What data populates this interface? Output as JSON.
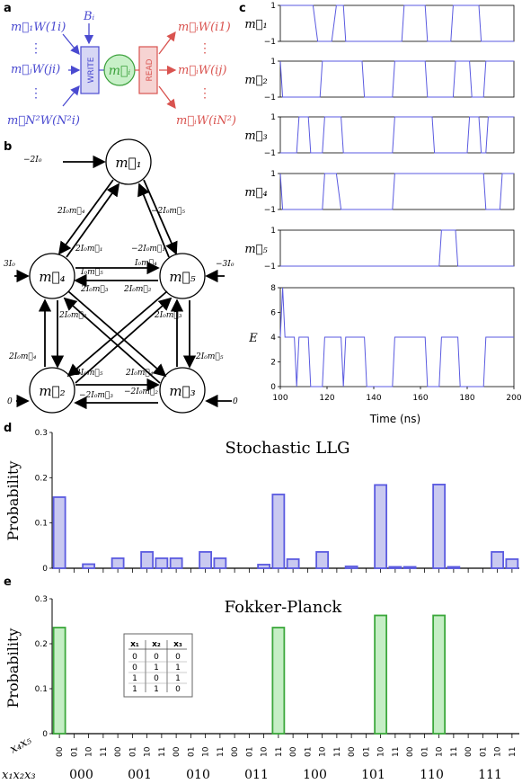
{
  "panels": {
    "a": "a",
    "b": "b",
    "c": "c",
    "d": "d",
    "e": "e"
  },
  "panel_a": {
    "inputs": [
      "m⃗₁W(1i)",
      "m⃗ⱼW(ji)",
      "m⃗N²W(N²i)"
    ],
    "bias": "Bᵢ",
    "write": "WRITE",
    "read": "READ",
    "node": "m⃗ᵢ",
    "outputs": [
      "m⃗ᵢW(i1)",
      "m⃗ᵢW(ij)",
      "m⃗ᵢW(iN²)"
    ],
    "colors": {
      "blue": "#4a4ad0",
      "red": "#d9534f",
      "node_fill": "#c8f0c8",
      "node_stroke": "#3aa03a"
    }
  },
  "panel_b": {
    "nodes": [
      "m⃗₁",
      "m⃗₂",
      "m⃗₃",
      "m⃗₄",
      "m⃗₅"
    ],
    "biases": {
      "m1": "−2I₀",
      "m4": "3I₀",
      "m5": "−3I₀",
      "m2": "0",
      "m3": "0"
    },
    "edge_labels": [
      "2I₀m⃗₄",
      "−2I₀m⃗₅",
      "2I₀m⃗₁",
      "−2I₀m⃗₁",
      "I₀m⃗₅",
      "I₀m⃗₄",
      "2I₀m⃗₃",
      "2I₀m⃗₂",
      "2I₀m⃗₂",
      "2I₀m⃗₃",
      "2I₀m⃗₄",
      "2I₀m⃗₅",
      "2I₀m⃗₅",
      "2I₀m⃗₄",
      "−2I₀m⃗₃",
      "−2I₀m⃗₂"
    ]
  },
  "chart_data": [
    {
      "type": "line",
      "panel": "c",
      "xlabel": "Time (ns)",
      "xlim": [
        100,
        200
      ],
      "xticks": [
        100,
        120,
        140,
        160,
        180,
        200
      ],
      "series": [
        {
          "name": "m⃗₁",
          "ylim": [
            -1,
            1
          ],
          "yticks": [
            -1,
            0,
            1
          ],
          "segments": [
            [
              100,
              1
            ],
            [
              114,
              1
            ],
            [
              116,
              -1
            ],
            [
              122,
              -1
            ],
            [
              124,
              1
            ],
            [
              127,
              1
            ],
            [
              128,
              -1
            ],
            [
              152,
              -1
            ],
            [
              153,
              1
            ],
            [
              162,
              1
            ],
            [
              163,
              -1
            ],
            [
              173,
              -1
            ],
            [
              174,
              1
            ],
            [
              185,
              1
            ],
            [
              186,
              -1
            ],
            [
              200,
              -1
            ]
          ]
        },
        {
          "name": "m⃗₂",
          "ylim": [
            -1,
            1
          ],
          "yticks": [
            -1,
            0,
            1
          ],
          "segments": [
            [
              100,
              1
            ],
            [
              101,
              -1
            ],
            [
              117,
              -1
            ],
            [
              118,
              1
            ],
            [
              135,
              1
            ],
            [
              136,
              -1
            ],
            [
              148,
              -1
            ],
            [
              149,
              1
            ],
            [
              162,
              1
            ],
            [
              163,
              -1
            ],
            [
              174,
              -1
            ],
            [
              175,
              1
            ],
            [
              181,
              1
            ],
            [
              182,
              -1
            ],
            [
              187,
              -1
            ],
            [
              188,
              1
            ],
            [
              200,
              1
            ]
          ]
        },
        {
          "name": "m⃗₃",
          "ylim": [
            -1,
            1
          ],
          "yticks": [
            -1,
            0,
            1
          ],
          "segments": [
            [
              100,
              -1
            ],
            [
              107,
              -1
            ],
            [
              108,
              1
            ],
            [
              112,
              1
            ],
            [
              113,
              -1
            ],
            [
              118,
              -1
            ],
            [
              119,
              1
            ],
            [
              126,
              1
            ],
            [
              127,
              -1
            ],
            [
              148,
              -1
            ],
            [
              149,
              1
            ],
            [
              165,
              1
            ],
            [
              166,
              -1
            ],
            [
              180,
              -1
            ],
            [
              181,
              1
            ],
            [
              185,
              1
            ],
            [
              186,
              -1
            ],
            [
              188,
              -1
            ],
            [
              189,
              1
            ],
            [
              200,
              1
            ]
          ]
        },
        {
          "name": "m⃗₄",
          "ylim": [
            -1,
            1
          ],
          "yticks": [
            -1,
            0,
            1
          ],
          "segments": [
            [
              100,
              1
            ],
            [
              101,
              -1
            ],
            [
              118,
              -1
            ],
            [
              119,
              1
            ],
            [
              124,
              1
            ],
            [
              126,
              -1
            ],
            [
              148,
              -1
            ],
            [
              149,
              1
            ],
            [
              187,
              1
            ],
            [
              188,
              -1
            ],
            [
              194,
              -1
            ],
            [
              195,
              1
            ],
            [
              200,
              1
            ]
          ]
        },
        {
          "name": "m⃗₅",
          "ylim": [
            -1,
            1
          ],
          "yticks": [
            -1,
            0,
            1
          ],
          "segments": [
            [
              100,
              -1
            ],
            [
              168,
              -1
            ],
            [
              169,
              1
            ],
            [
              175,
              1
            ],
            [
              176,
              -1
            ],
            [
              200,
              -1
            ]
          ]
        },
        {
          "name": "E",
          "ylim": [
            0,
            8
          ],
          "yticks": [
            0,
            2,
            4,
            6,
            8
          ],
          "segments": [
            [
              100,
              4
            ],
            [
              101,
              8
            ],
            [
              102,
              4
            ],
            [
              106,
              4
            ],
            [
              107,
              0
            ],
            [
              108,
              4
            ],
            [
              112,
              4
            ],
            [
              113,
              0
            ],
            [
              118,
              0
            ],
            [
              119,
              4
            ],
            [
              126,
              4
            ],
            [
              127,
              0
            ],
            [
              128,
              4
            ],
            [
              136,
              4
            ],
            [
              137,
              0
            ],
            [
              148,
              0
            ],
            [
              149,
              4
            ],
            [
              162,
              4
            ],
            [
              163,
              0
            ],
            [
              168,
              0
            ],
            [
              169,
              4
            ],
            [
              176,
              4
            ],
            [
              177,
              0
            ],
            [
              187,
              0
            ],
            [
              188,
              4
            ],
            [
              200,
              4
            ]
          ]
        }
      ]
    },
    {
      "type": "bar",
      "panel": "d",
      "title": "Stochastic LLG",
      "ylabel": "Probability",
      "ylim": [
        0,
        0.3
      ],
      "yticks": [
        0,
        0.1,
        0.2,
        0.3
      ],
      "values": [
        0.157,
        0,
        0.009,
        0,
        0.022,
        0,
        0.036,
        0.022,
        0.022,
        0,
        0.036,
        0.022,
        0,
        0,
        0.008,
        0.163,
        0.02,
        0,
        0.036,
        0,
        0.004,
        0,
        0.184,
        0.003,
        0.003,
        0,
        0.185,
        0.003,
        0,
        0,
        0.036,
        0.02
      ]
    },
    {
      "type": "bar",
      "panel": "e",
      "title": "Fokker-Planck",
      "ylabel": "Probability",
      "ylim": [
        0,
        0.3
      ],
      "yticks": [
        0,
        0.1,
        0.2,
        0.3
      ],
      "values": [
        0.236,
        0,
        0,
        0,
        0,
        0,
        0,
        0,
        0,
        0,
        0,
        0,
        0,
        0,
        0,
        0.236,
        0,
        0,
        0,
        0,
        0,
        0,
        0.263,
        0,
        0,
        0,
        0.263,
        0,
        0,
        0,
        0,
        0
      ]
    }
  ],
  "x_axis_labels": {
    "inner_name": "x₄x₅",
    "outer_name": "x₁x₂x₃",
    "inner": [
      "00",
      "01",
      "10",
      "11"
    ],
    "outer": [
      "000",
      "001",
      "010",
      "011",
      "100",
      "101",
      "110",
      "111"
    ]
  },
  "truth_table": {
    "headers": [
      "x₁",
      "x₂",
      "x₃"
    ],
    "rows": [
      [
        "0",
        "0",
        "0"
      ],
      [
        "0",
        "1",
        "1"
      ],
      [
        "1",
        "0",
        "1"
      ],
      [
        "1",
        "1",
        "0"
      ]
    ]
  },
  "colors": {
    "llg_fill": "#c9c9f0",
    "llg_stroke": "#5a5ae0",
    "fp_fill": "#c5eec5",
    "fp_stroke": "#3ca83c",
    "line": "#5a5ae0"
  }
}
